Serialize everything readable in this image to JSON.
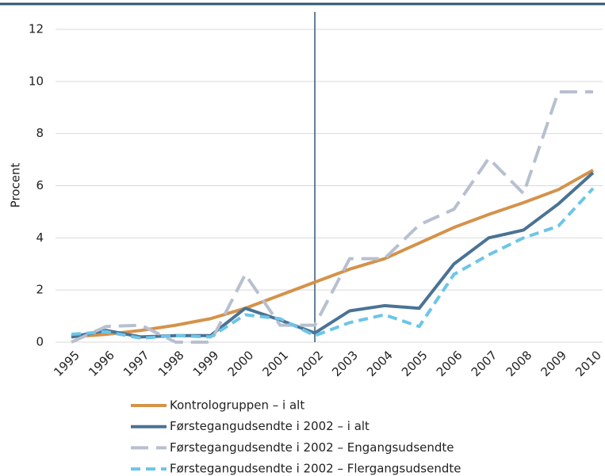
{
  "chart_data": {
    "type": "line",
    "ylabel": "Procent",
    "categories": [
      "1995",
      "1996",
      "1997",
      "1998",
      "1999",
      "2000",
      "2001",
      "2002",
      "2003",
      "2004",
      "2005",
      "2006",
      "2007",
      "2008",
      "2009",
      "2010"
    ],
    "ylim": [
      0,
      12
    ],
    "yticks": [
      0,
      2,
      4,
      6,
      8,
      10,
      12
    ],
    "grid": true,
    "vline": "2002",
    "series": [
      {
        "name": "Kontrologruppen – i alt",
        "color": "#d4924a",
        "dash": "none",
        "values": [
          0.2,
          0.3,
          0.45,
          0.65,
          0.9,
          1.3,
          1.8,
          2.3,
          2.8,
          3.2,
          3.8,
          4.4,
          4.9,
          5.35,
          5.85,
          6.6
        ]
      },
      {
        "name": "Førstegangudsendte i 2002 – i alt",
        "color": "#4a7394",
        "dash": "none",
        "values": [
          0.2,
          0.45,
          0.2,
          0.25,
          0.25,
          1.3,
          0.85,
          0.35,
          1.2,
          1.4,
          1.3,
          3.0,
          4.0,
          4.3,
          5.3,
          6.5
        ]
      },
      {
        "name": "Førstegangudsendte i 2002 – Engangsudsendte",
        "color": "#b8bfcf",
        "dash": "22 10",
        "values": [
          0,
          0.6,
          0.65,
          0,
          0,
          2.6,
          0.65,
          0.65,
          3.2,
          3.2,
          4.5,
          5.1,
          7.05,
          5.7,
          9.6,
          9.6
        ]
      },
      {
        "name": "Førstegangudsendte i 2002 – Flergangsudsendte",
        "color": "#6cc5e9",
        "dash": "12 7",
        "values": [
          0.3,
          0.4,
          0.15,
          0.25,
          0.2,
          1.05,
          0.9,
          0.25,
          0.75,
          1.05,
          0.6,
          2.6,
          3.35,
          4.0,
          4.45,
          5.9
        ]
      }
    ]
  }
}
